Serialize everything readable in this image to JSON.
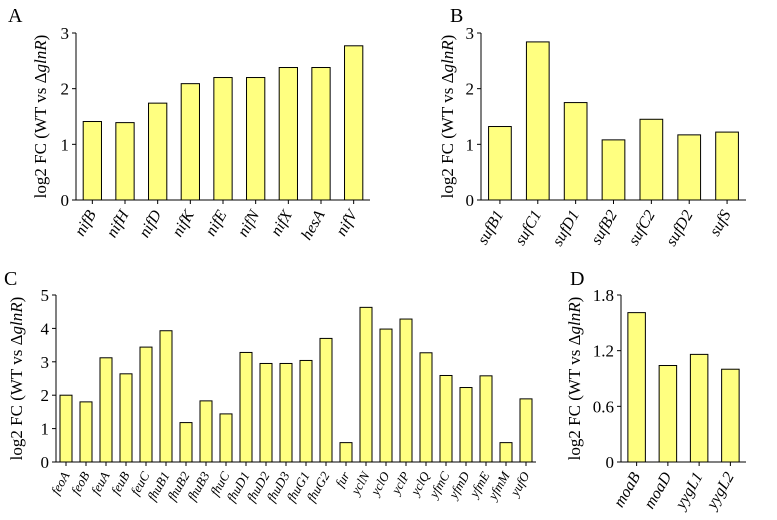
{
  "colors": {
    "bar_fill": "#ffff80",
    "bar_stroke": "#000000",
    "axis": "#000000"
  },
  "chart_data": [
    {
      "type": "bar",
      "panel": "A",
      "title": "",
      "ylabel_prefix": "log2 FC (WT vs Δ",
      "ylabel_gene": "glnR",
      "ylabel_suffix": ")",
      "ylim": [
        0,
        3
      ],
      "yticks": [
        0,
        1,
        2,
        3
      ],
      "ytick_labels": [
        "0",
        "1",
        "2",
        "3"
      ],
      "categories": [
        "nifB",
        "nifH",
        "nifD",
        "nifK",
        "nifE",
        "nifN",
        "nifX",
        "hesA",
        "nifV"
      ],
      "values": [
        1.41,
        1.39,
        1.74,
        2.09,
        2.2,
        2.2,
        2.38,
        2.38,
        2.77
      ]
    },
    {
      "type": "bar",
      "panel": "B",
      "title": "",
      "ylabel_prefix": "log2 FC (WT vs Δ",
      "ylabel_gene": "glnR",
      "ylabel_suffix": ")",
      "ylim": [
        0,
        3
      ],
      "yticks": [
        0,
        1,
        2,
        3
      ],
      "ytick_labels": [
        "0",
        "1",
        "2",
        "3"
      ],
      "categories": [
        "sufB1",
        "sufC1",
        "sufD1",
        "sufB2",
        "sufC2",
        "sufD2",
        "sufS"
      ],
      "values": [
        1.32,
        2.84,
        1.75,
        1.08,
        1.45,
        1.17,
        1.22
      ]
    },
    {
      "type": "bar",
      "panel": "C",
      "title": "",
      "ylabel_prefix": "log2 FC (WT vs Δ",
      "ylabel_gene": "glnR",
      "ylabel_suffix": ")",
      "ylim": [
        0,
        5
      ],
      "yticks": [
        0,
        1,
        2,
        3,
        4,
        5
      ],
      "ytick_labels": [
        "0",
        "1",
        "2",
        "3",
        "4",
        "5"
      ],
      "categories": [
        "feoA",
        "feoB",
        "feuA",
        "feuB",
        "feuC",
        "fhuB1",
        "fhuB2",
        "fhuB3",
        "fhuC",
        "fhuD1",
        "fhuD2",
        "fhuD3",
        "fhuG1",
        "fhuG2",
        "fur",
        "yclN",
        "yclO",
        "yclP",
        "yclQ",
        "yfmC",
        "yfmD",
        "yfmE",
        "yfmM",
        "yufO"
      ],
      "values": [
        2.0,
        1.8,
        3.12,
        2.64,
        3.44,
        3.93,
        1.18,
        1.83,
        1.44,
        3.28,
        2.95,
        2.95,
        3.04,
        3.7,
        0.58,
        4.63,
        3.98,
        4.28,
        3.27,
        2.59,
        2.23,
        2.58,
        0.58,
        1.89
      ]
    },
    {
      "type": "bar",
      "panel": "D",
      "title": "",
      "ylabel_prefix": "log2 FC (WT vs Δ",
      "ylabel_gene": "glnR",
      "ylabel_suffix": ")",
      "ylim": [
        0,
        1.8
      ],
      "yticks": [
        0,
        0.6,
        1.2,
        1.8
      ],
      "ytick_labels": [
        "0",
        "0.6",
        "1.2",
        "1.8"
      ],
      "categories": [
        "moaB",
        "moaD",
        "yygL1",
        "yygL2"
      ],
      "values": [
        1.61,
        1.04,
        1.16,
        1.0
      ]
    }
  ]
}
